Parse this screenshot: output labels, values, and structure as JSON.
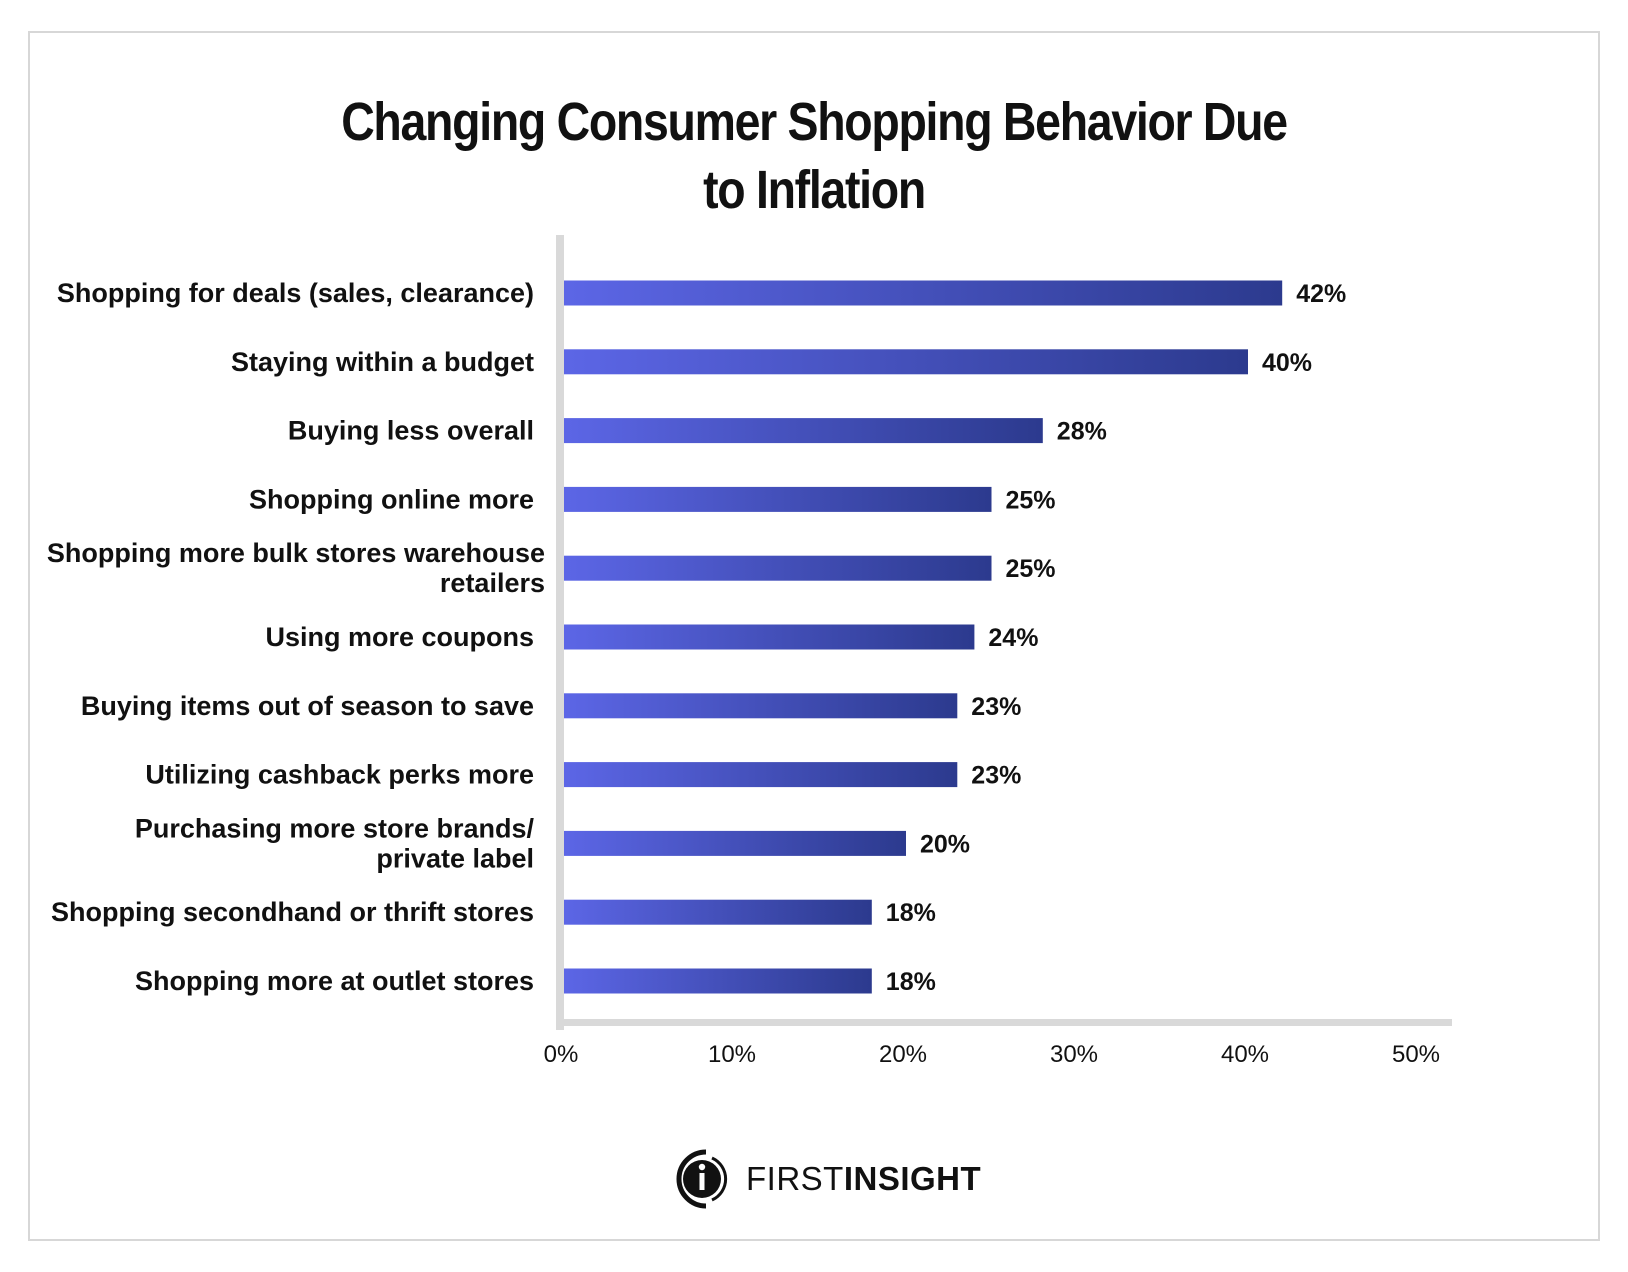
{
  "chart_data": {
    "type": "bar",
    "orientation": "horizontal",
    "title": "Changing Consumer Shopping Behavior Due to Inflation",
    "title_lines": [
      "Changing Consumer Shopping Behavior Due",
      "to Inflation"
    ],
    "categories": [
      [
        "Shopping for deals (sales, clearance)"
      ],
      [
        "Staying within a budget"
      ],
      [
        "Buying less overall"
      ],
      [
        "Shopping online more"
      ],
      [
        "Shopping more bulk stores warehouse",
        "retailers"
      ],
      [
        "Using more coupons"
      ],
      [
        "Buying items out of season to save"
      ],
      [
        "Utilizing cashback perks more"
      ],
      [
        "Purchasing more store brands/",
        "private label"
      ],
      [
        "Shopping secondhand or thrift stores"
      ],
      [
        "Shopping more at outlet stores"
      ]
    ],
    "values": [
      42,
      40,
      28,
      25,
      25,
      24,
      23,
      23,
      20,
      18,
      18
    ],
    "value_labels": [
      "42%",
      "40%",
      "28%",
      "25%",
      "25%",
      "24%",
      "23%",
      "23%",
      "20%",
      "18%",
      "18%"
    ],
    "xlim": [
      0,
      50
    ],
    "x_ticks": [
      0,
      10,
      20,
      30,
      40,
      50
    ],
    "x_tick_labels": [
      "0%",
      "10%",
      "20%",
      "30%",
      "40%",
      "50%"
    ],
    "xlabel": "",
    "ylabel": "",
    "grid": false,
    "legend": "none",
    "colors": {
      "bar_start": "#5c66e6",
      "bar_end": "#2c3a8e",
      "axis": "#d9d9d9"
    }
  },
  "branding": {
    "logo_light": "FIRST",
    "logo_bold": "INSIGHT"
  }
}
